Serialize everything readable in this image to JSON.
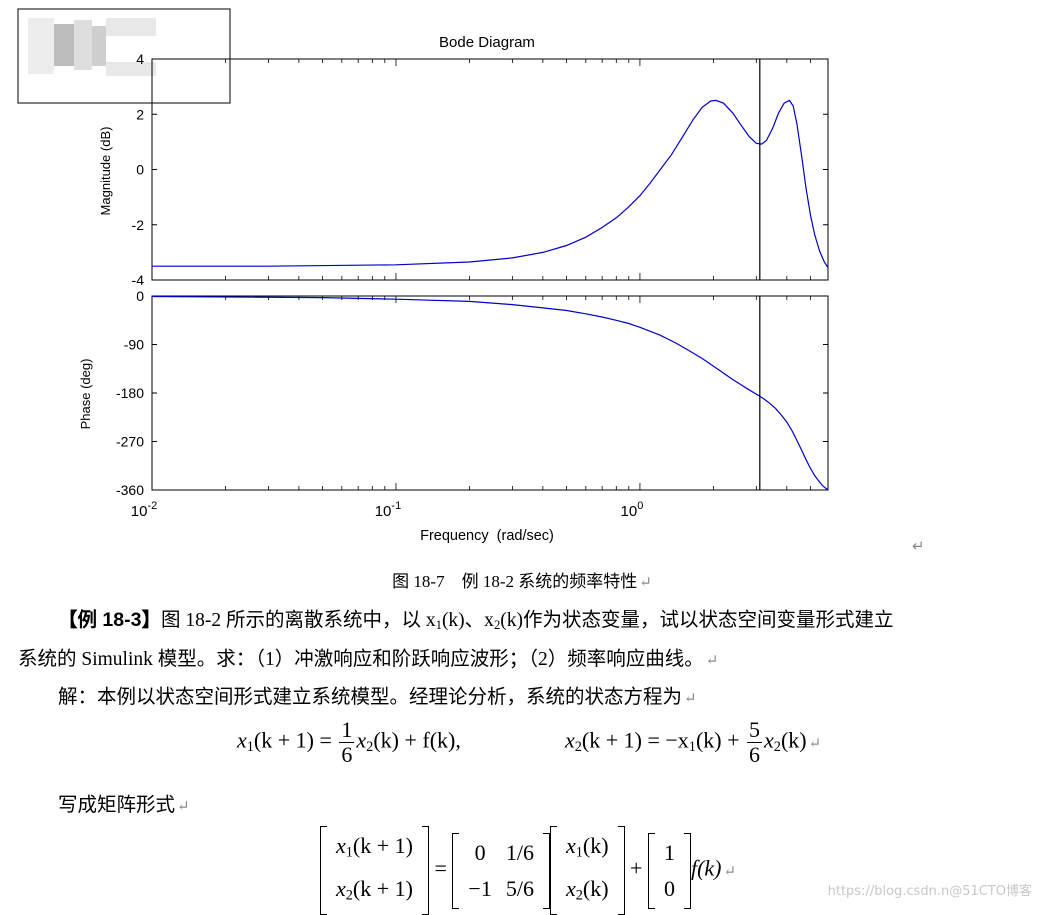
{
  "chart_data": {
    "type": "line",
    "title": "Bode Diagram",
    "xlabel": "Frequency  (rad/sec)",
    "x_scale": "log",
    "xlim": [
      0.01,
      5.9
    ],
    "x_ticks": [
      "10^-2",
      "10^-1",
      "10^0"
    ],
    "cursor_x": 3.1,
    "grid": false,
    "panels": [
      {
        "name": "magnitude",
        "ylabel": "Magnitude (dB)",
        "ylim": [
          -4,
          4
        ],
        "yticks": [
          "4",
          "2",
          "0",
          "-2",
          "-4"
        ],
        "series": [
          {
            "color": "#0000cc",
            "points": [
              [
                0.01,
                -3.5
              ],
              [
                0.03,
                -3.5
              ],
              [
                0.1,
                -3.45
              ],
              [
                0.2,
                -3.35
              ],
              [
                0.3,
                -3.2
              ],
              [
                0.4,
                -3.0
              ],
              [
                0.5,
                -2.75
              ],
              [
                0.6,
                -2.45
              ],
              [
                0.7,
                -2.1
              ],
              [
                0.8,
                -1.75
              ],
              [
                0.9,
                -1.35
              ],
              [
                1.0,
                -0.95
              ],
              [
                1.1,
                -0.5
              ],
              [
                1.2,
                -0.05
              ],
              [
                1.35,
                0.55
              ],
              [
                1.5,
                1.2
              ],
              [
                1.65,
                1.8
              ],
              [
                1.8,
                2.25
              ],
              [
                1.95,
                2.48
              ],
              [
                2.05,
                2.5
              ],
              [
                2.2,
                2.4
              ],
              [
                2.4,
                2.05
              ],
              [
                2.6,
                1.6
              ],
              [
                2.8,
                1.2
              ],
              [
                3.0,
                0.95
              ],
              [
                3.15,
                0.92
              ],
              [
                3.3,
                1.05
              ],
              [
                3.5,
                1.5
              ],
              [
                3.7,
                2.05
              ],
              [
                3.9,
                2.4
              ],
              [
                4.1,
                2.5
              ],
              [
                4.25,
                2.3
              ],
              [
                4.4,
                1.65
              ],
              [
                4.6,
                0.5
              ],
              [
                4.8,
                -0.7
              ],
              [
                5.0,
                -1.65
              ],
              [
                5.2,
                -2.35
              ],
              [
                5.45,
                -2.95
              ],
              [
                5.7,
                -3.35
              ],
              [
                5.9,
                -3.55
              ]
            ]
          }
        ]
      },
      {
        "name": "phase",
        "ylabel": "Phase (deg)",
        "ylim": [
          -360,
          0
        ],
        "yticks": [
          "0",
          "-90",
          "-180",
          "-270",
          "-360"
        ],
        "series": [
          {
            "color": "#0000cc",
            "points": [
              [
                0.01,
                -1
              ],
              [
                0.05,
                -3
              ],
              [
                0.1,
                -6
              ],
              [
                0.2,
                -10
              ],
              [
                0.3,
                -16
              ],
              [
                0.4,
                -22
              ],
              [
                0.5,
                -27
              ],
              [
                0.6,
                -33
              ],
              [
                0.7,
                -39
              ],
              [
                0.8,
                -45
              ],
              [
                0.9,
                -51
              ],
              [
                1.0,
                -58
              ],
              [
                1.2,
                -72
              ],
              [
                1.4,
                -87
              ],
              [
                1.6,
                -102
              ],
              [
                1.8,
                -116
              ],
              [
                2.0,
                -130
              ],
              [
                2.2,
                -143
              ],
              [
                2.4,
                -155
              ],
              [
                2.6,
                -165
              ],
              [
                2.8,
                -174
              ],
              [
                3.0,
                -182
              ],
              [
                3.2,
                -190
              ],
              [
                3.4,
                -199
              ],
              [
                3.6,
                -209
              ],
              [
                3.8,
                -221
              ],
              [
                4.0,
                -234
              ],
              [
                4.2,
                -250
              ],
              [
                4.4,
                -268
              ],
              [
                4.6,
                -286
              ],
              [
                4.8,
                -304
              ],
              [
                5.0,
                -320
              ],
              [
                5.2,
                -333
              ],
              [
                5.4,
                -343
              ],
              [
                5.6,
                -352
              ],
              [
                5.9,
                -360
              ]
            ]
          }
        ]
      }
    ]
  },
  "caption": "图 18-7　例 18-2 系统的频率特性",
  "para1": {
    "bracket_open": "【",
    "label": "例 18-3",
    "bracket_close": "】",
    "text1": "图 18-2 所示的离散系统中，以 x",
    "sub1": "1",
    "text2": "(k)、x",
    "sub2": "2",
    "text3": "(k)作为状态变量，试以状态空间变量形式建立",
    "line2": "系统的 Simulink 模型。求：（1）冲激响应和阶跃响应波形；（2）频率响应曲线。"
  },
  "para2": "解：本例以状态空间形式建立系统模型。经理论分析，系统的状态方程为",
  "equation1": {
    "lhs1": "x",
    "lhs1_sub": "1",
    "lhs1_arg": "(k + 1) =",
    "frac1_num": "1",
    "frac1_den": "6",
    "term1": "x",
    "term1_sub": "2",
    "term1_rest": "(k) + f(k),",
    "lhs2": "x",
    "lhs2_sub": "2",
    "lhs2_arg": "(k + 1) = −x",
    "lhs2_sub2": "1",
    "lhs2_rest": "(k) +",
    "frac2_num": "5",
    "frac2_den": "6",
    "term2": "x",
    "term2_sub": "2",
    "term2_rest": "(k)"
  },
  "para3": "写成矩阵形式",
  "matrix_eq": {
    "lhs": [
      [
        "x",
        "1",
        "(k + 1)"
      ],
      [
        "x",
        "2",
        "(k + 1)"
      ]
    ],
    "A": [
      [
        "0",
        "1/6"
      ],
      [
        "−1",
        "5/6"
      ]
    ],
    "x": [
      [
        "x",
        "1",
        "(k)"
      ],
      [
        "x",
        "2",
        "(k)"
      ]
    ],
    "B": [
      "1",
      "0"
    ],
    "equals": "=",
    "plus": "+",
    "fk": "f(k)"
  },
  "return_mark": "↵",
  "watermark": "https://blog.csdn.n@51CTO博客"
}
